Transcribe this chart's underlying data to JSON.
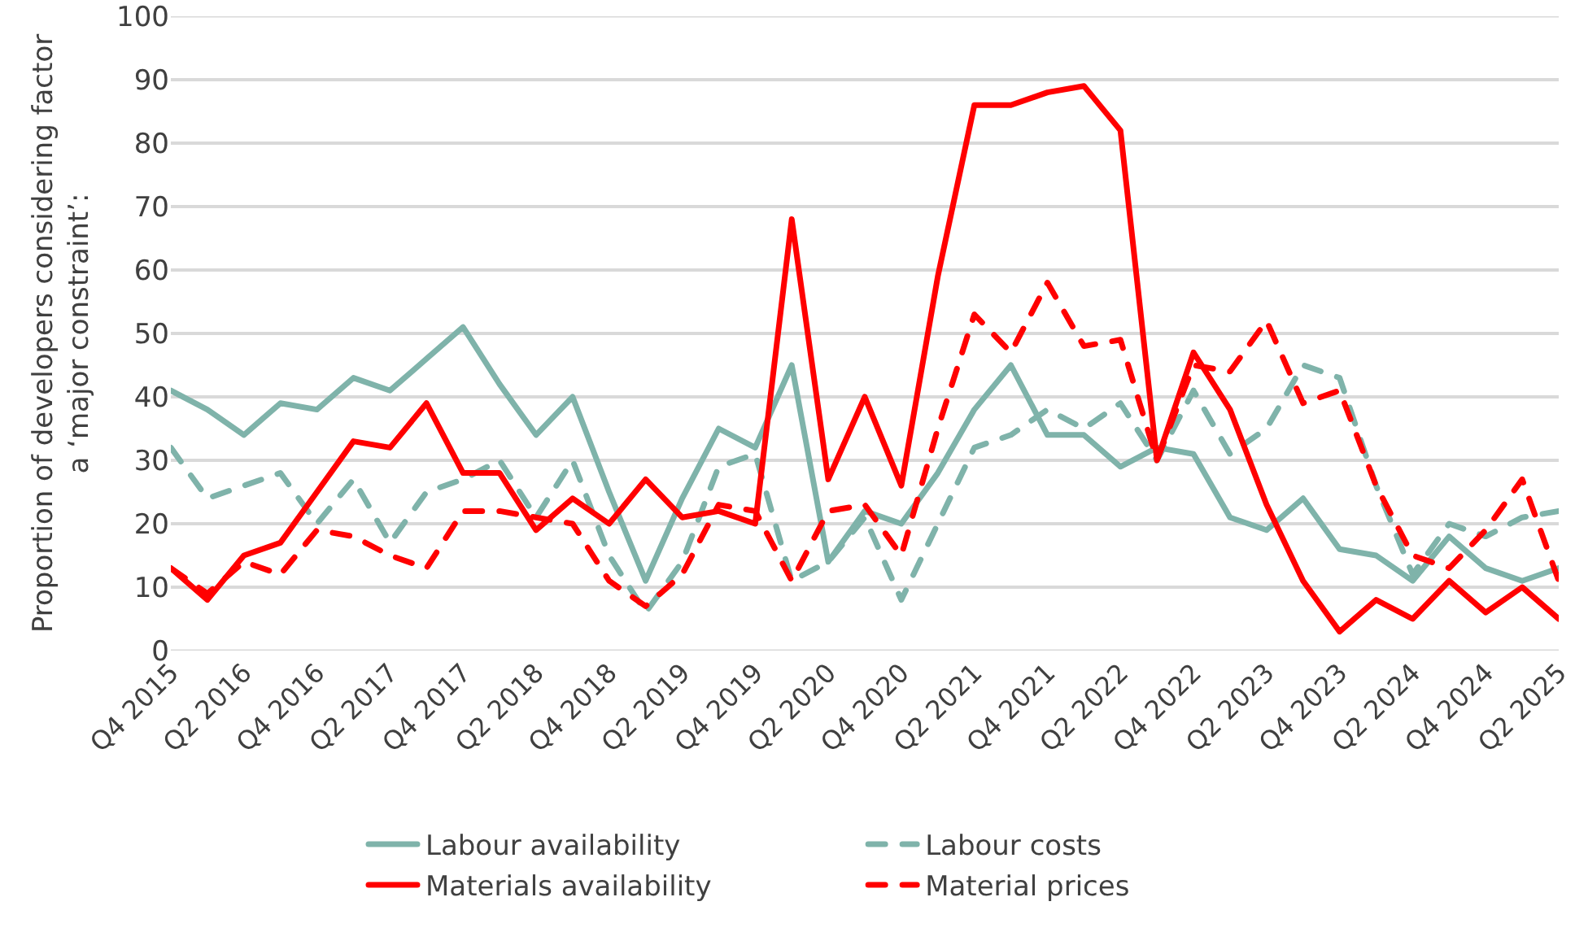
{
  "chart_data": {
    "type": "line",
    "ylabel": "Proportion of developers considering factor\na ‘major constraint’:",
    "categories": [
      "Q4 2015",
      null,
      "Q2 2016",
      null,
      "Q4 2016",
      null,
      "Q2 2017",
      null,
      "Q4 2017",
      null,
      "Q2 2018",
      null,
      "Q4 2018",
      null,
      "Q2 2019",
      null,
      "Q4 2019",
      null,
      "Q2 2020",
      null,
      "Q4 2020",
      null,
      "Q2 2021",
      null,
      "Q4 2021",
      null,
      "Q2 2022",
      null,
      "Q4 2022",
      null,
      "Q2 2023",
      null,
      "Q4 2023",
      null,
      "Q2 2024",
      null,
      "Q4 2024",
      null,
      "Q2 2025"
    ],
    "series": [
      {
        "name": "Labour availability",
        "color": "#7fb3aa",
        "line_style": "solid",
        "values": [
          41,
          38,
          34,
          39,
          38,
          43,
          41,
          46,
          51,
          42,
          34,
          40,
          25,
          11,
          24,
          35,
          32,
          45,
          14,
          22,
          20,
          28,
          38,
          45,
          34,
          34,
          29,
          32,
          31,
          21,
          19,
          24,
          16,
          15,
          11,
          18,
          13,
          11,
          13
        ]
      },
      {
        "name": "Labour costs",
        "color": "#7fb3aa",
        "line_style": "dashed",
        "values": [
          32,
          24,
          26,
          28,
          20,
          27,
          17,
          25,
          27,
          30,
          21,
          30,
          15,
          6,
          14,
          29,
          31,
          11,
          14,
          21,
          8,
          20,
          32,
          34,
          38,
          35,
          39,
          30,
          41,
          31,
          35,
          45,
          43,
          26,
          12,
          20,
          18,
          21,
          22
        ]
      },
      {
        "name": "Materials availability",
        "color": "#ff0000",
        "line_style": "solid",
        "values": [
          13,
          8,
          15,
          17,
          25,
          33,
          32,
          39,
          28,
          28,
          19,
          24,
          20,
          27,
          21,
          22,
          20,
          68,
          27,
          40,
          26,
          59,
          86,
          86,
          88,
          89,
          82,
          30,
          47,
          38,
          23,
          11,
          3,
          8,
          5,
          11,
          6,
          10,
          5
        ]
      },
      {
        "name": "Material prices",
        "color": "#ff0000",
        "line_style": "dashed",
        "values": [
          13,
          9,
          14,
          12,
          19,
          18,
          15,
          13,
          22,
          22,
          21,
          20,
          11,
          7,
          12,
          23,
          22,
          11,
          22,
          23,
          15,
          35,
          53,
          47,
          58,
          48,
          49,
          30,
          45,
          44,
          52,
          39,
          41,
          26,
          15,
          13,
          19,
          27,
          11
        ]
      }
    ],
    "ylim": [
      0,
      100
    ],
    "yticks": [
      0,
      10,
      20,
      30,
      40,
      50,
      60,
      70,
      80,
      90,
      100
    ],
    "grid": "y",
    "legend": "bottom",
    "marker": "none"
  }
}
